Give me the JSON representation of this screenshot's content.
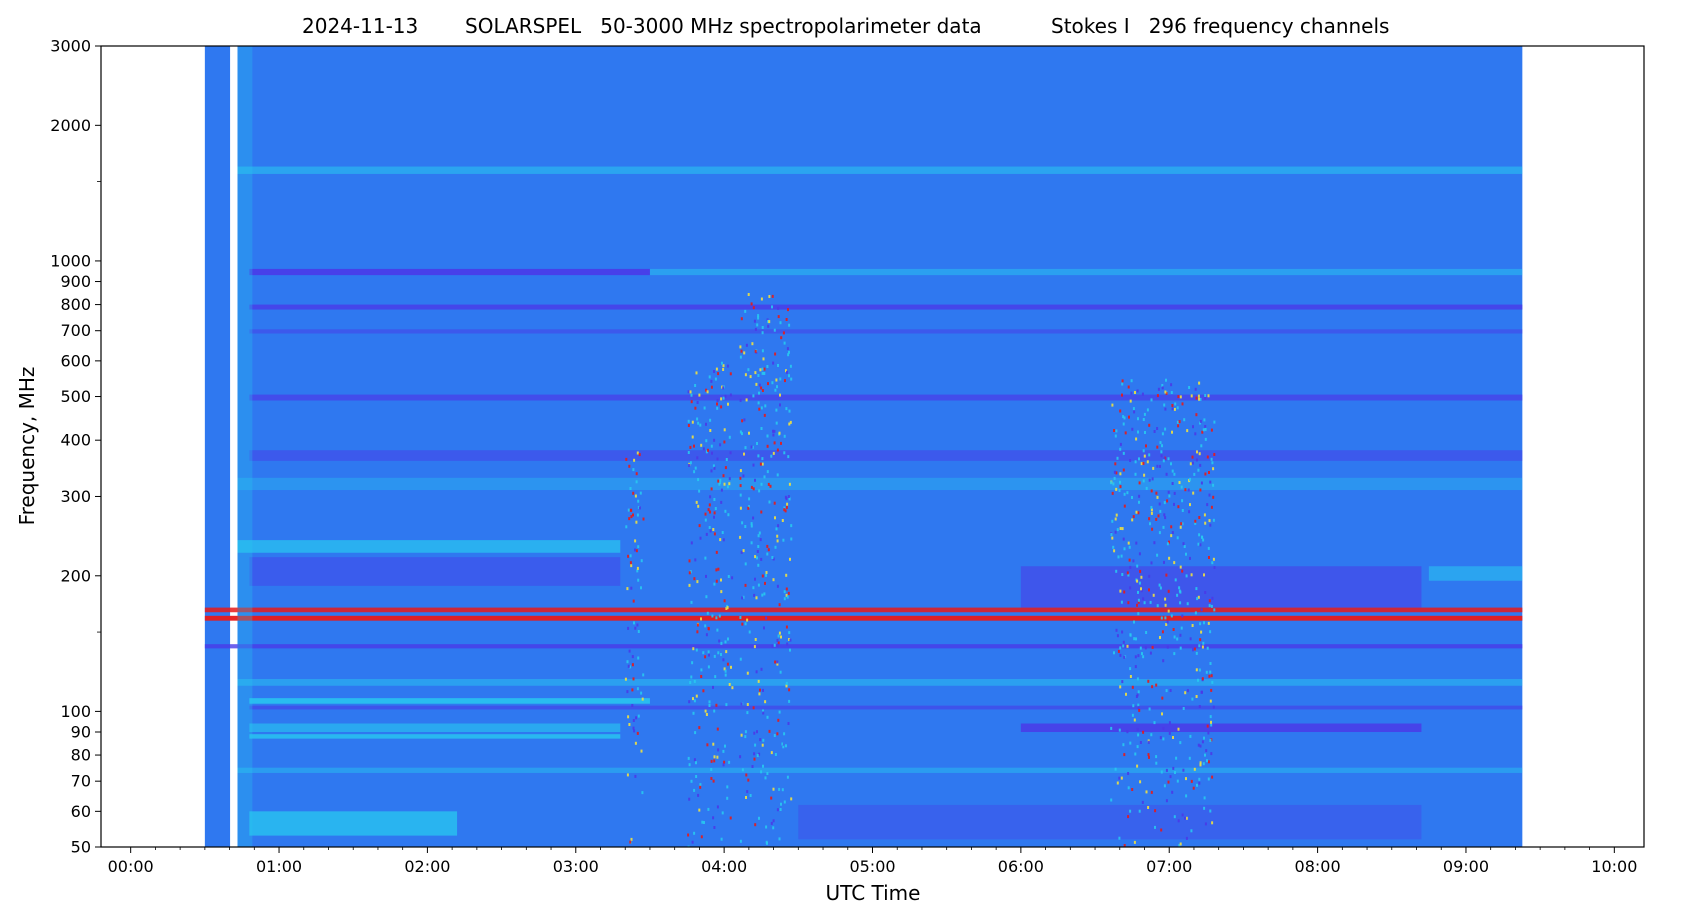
{
  "chart_data": {
    "type": "heatmap",
    "title_parts": [
      "2024-11-13",
      "SOLARSPEL   50-3000 MHz spectropolarimeter data",
      "Stokes I   296 frequency channels"
    ],
    "xlabel": "UTC Time",
    "ylabel": "Frequency, MHz",
    "x_range_hours": [
      -0.2,
      10.2
    ],
    "ylim": [
      50,
      3000
    ],
    "y_scale": "log",
    "x_ticks": [
      {
        "value": 0,
        "label": "00:00"
      },
      {
        "value": 1,
        "label": "01:00"
      },
      {
        "value": 2,
        "label": "02:00"
      },
      {
        "value": 3,
        "label": "03:00"
      },
      {
        "value": 4,
        "label": "04:00"
      },
      {
        "value": 5,
        "label": "05:00"
      },
      {
        "value": 6,
        "label": "06:00"
      },
      {
        "value": 7,
        "label": "07:00"
      },
      {
        "value": 8,
        "label": "08:00"
      },
      {
        "value": 9,
        "label": "09:00"
      },
      {
        "value": 10,
        "label": "10:00"
      }
    ],
    "y_ticks": [
      {
        "value": 50,
        "label": "50"
      },
      {
        "value": 60,
        "label": "60"
      },
      {
        "value": 70,
        "label": "70"
      },
      {
        "value": 80,
        "label": "80"
      },
      {
        "value": 90,
        "label": "90"
      },
      {
        "value": 100,
        "label": "100"
      },
      {
        "value": 200,
        "label": "200"
      },
      {
        "value": 300,
        "label": "300"
      },
      {
        "value": 400,
        "label": "400"
      },
      {
        "value": 500,
        "label": "500"
      },
      {
        "value": 600,
        "label": "600"
      },
      {
        "value": 700,
        "label": "700"
      },
      {
        "value": 800,
        "label": "800"
      },
      {
        "value": 900,
        "label": "900"
      },
      {
        "value": 1000,
        "label": "1000"
      },
      {
        "value": 2000,
        "label": "2000"
      },
      {
        "value": 3000,
        "label": "3000"
      }
    ],
    "y_minor_ticks": [
      1500,
      150
    ],
    "data_segments_hours": [
      [
        0.5,
        0.67
      ],
      [
        0.72,
        9.38
      ]
    ],
    "colors": {
      "background": "#2f78f0",
      "low": "#4a3ae8",
      "mid": "#28c8f0",
      "high": "#e81a1a",
      "gap": "#ffffff"
    },
    "bands": [
      {
        "f_lo": 1560,
        "f_hi": 1620,
        "t_start": 0.72,
        "t_end": 9.38,
        "level": "mid",
        "opacity": 0.55
      },
      {
        "f_lo": 930,
        "f_hi": 960,
        "t_start": 0.8,
        "t_end": 3.5,
        "level": "low",
        "opacity": 0.9
      },
      {
        "f_lo": 930,
        "f_hi": 960,
        "t_start": 3.5,
        "t_end": 9.38,
        "level": "mid",
        "opacity": 0.5
      },
      {
        "f_lo": 780,
        "f_hi": 800,
        "t_start": 0.8,
        "t_end": 9.38,
        "level": "low",
        "opacity": 0.8
      },
      {
        "f_lo": 690,
        "f_hi": 705,
        "t_start": 0.8,
        "t_end": 9.38,
        "level": "low",
        "opacity": 0.5
      },
      {
        "f_lo": 490,
        "f_hi": 505,
        "t_start": 0.8,
        "t_end": 9.38,
        "level": "low",
        "opacity": 0.7
      },
      {
        "f_lo": 360,
        "f_hi": 380,
        "t_start": 0.8,
        "t_end": 9.38,
        "level": "low",
        "opacity": 0.5
      },
      {
        "f_lo": 310,
        "f_hi": 330,
        "t_start": 0.72,
        "t_end": 9.38,
        "level": "mid",
        "opacity": 0.35
      },
      {
        "f_lo": 225,
        "f_hi": 240,
        "t_start": 0.72,
        "t_end": 3.3,
        "level": "mid",
        "opacity": 0.7
      },
      {
        "f_lo": 190,
        "f_hi": 220,
        "t_start": 0.8,
        "t_end": 3.3,
        "level": "low",
        "opacity": 0.45
      },
      {
        "f_lo": 170,
        "f_hi": 210,
        "t_start": 6.0,
        "t_end": 8.7,
        "level": "low",
        "opacity": 0.55
      },
      {
        "f_lo": 195,
        "f_hi": 210,
        "t_start": 8.75,
        "t_end": 9.38,
        "level": "mid",
        "opacity": 0.55
      },
      {
        "f_lo": 166,
        "f_hi": 170,
        "t_start": 0.5,
        "t_end": 9.38,
        "level": "high",
        "opacity": 0.85
      },
      {
        "f_lo": 159,
        "f_hi": 163,
        "t_start": 0.5,
        "t_end": 9.38,
        "level": "high",
        "opacity": 0.95
      },
      {
        "f_lo": 138,
        "f_hi": 141,
        "t_start": 0.5,
        "t_end": 9.38,
        "level": "low",
        "opacity": 0.8
      },
      {
        "f_lo": 114,
        "f_hi": 118,
        "t_start": 0.72,
        "t_end": 9.38,
        "level": "mid",
        "opacity": 0.5
      },
      {
        "f_lo": 104,
        "f_hi": 107,
        "t_start": 0.8,
        "t_end": 3.5,
        "level": "mid",
        "opacity": 0.85
      },
      {
        "f_lo": 101,
        "f_hi": 103,
        "t_start": 0.8,
        "t_end": 9.38,
        "level": "low",
        "opacity": 0.6
      },
      {
        "f_lo": 90,
        "f_hi": 94,
        "t_start": 0.8,
        "t_end": 3.3,
        "level": "mid",
        "opacity": 0.6
      },
      {
        "f_lo": 87,
        "f_hi": 89,
        "t_start": 0.8,
        "t_end": 3.3,
        "level": "mid",
        "opacity": 0.8
      },
      {
        "f_lo": 90,
        "f_hi": 94,
        "t_start": 6.0,
        "t_end": 8.7,
        "level": "low",
        "opacity": 0.85
      },
      {
        "f_lo": 73,
        "f_hi": 75,
        "t_start": 0.72,
        "t_end": 9.38,
        "level": "mid",
        "opacity": 0.45
      },
      {
        "f_lo": 53,
        "f_hi": 60,
        "t_start": 0.8,
        "t_end": 2.2,
        "level": "mid",
        "opacity": 0.75
      },
      {
        "f_lo": 52,
        "f_hi": 62,
        "t_start": 4.5,
        "t_end": 8.7,
        "level": "low",
        "opacity": 0.35
      },
      {
        "f_lo": 50,
        "f_hi": 3000,
        "t_start": 0.72,
        "t_end": 0.82,
        "level": "mid",
        "opacity": 0.3
      }
    ],
    "bursts": [
      {
        "t_start": 3.33,
        "t_end": 3.45,
        "f_lo": 50,
        "f_hi": 380
      },
      {
        "t_start": 3.75,
        "t_end": 4.05,
        "f_lo": 50,
        "f_hi": 600
      },
      {
        "t_start": 4.1,
        "t_end": 4.45,
        "f_lo": 50,
        "f_hi": 850
      },
      {
        "t_start": 6.6,
        "t_end": 7.3,
        "f_lo": 50,
        "f_hi": 550
      }
    ]
  }
}
